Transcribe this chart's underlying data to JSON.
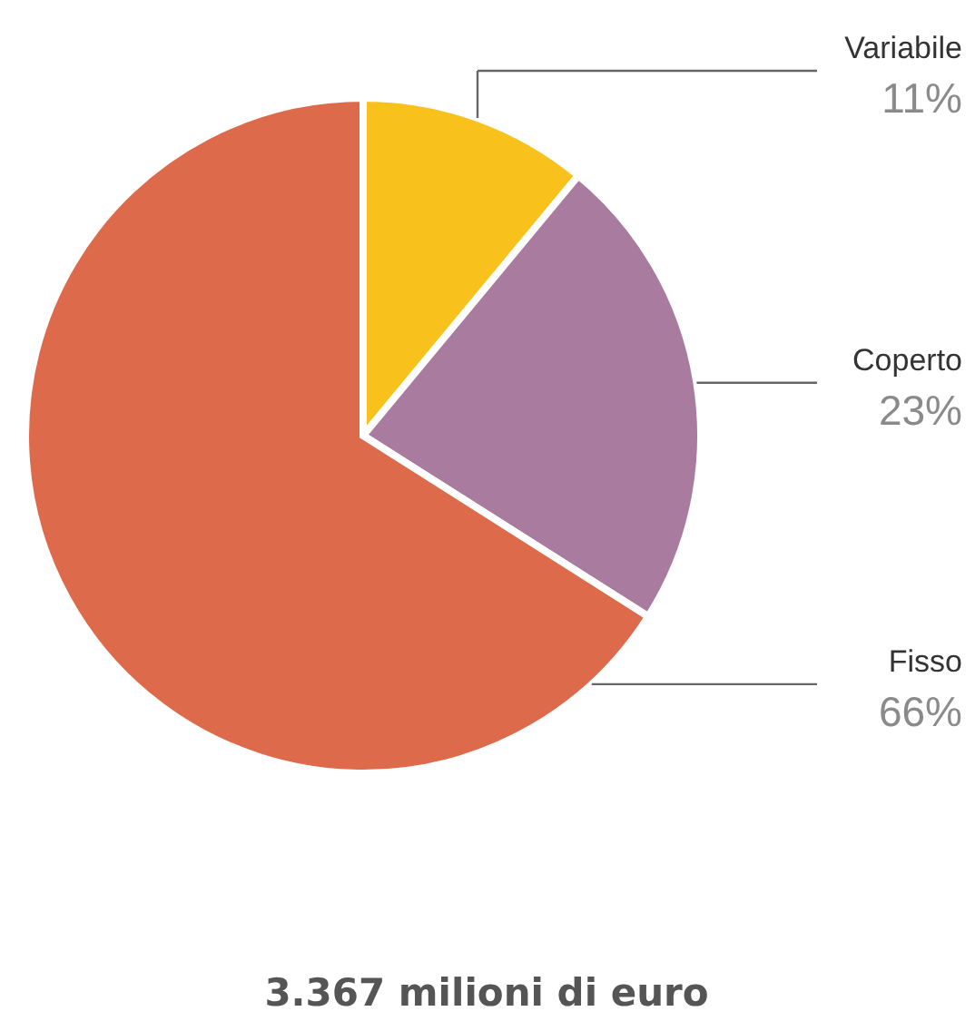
{
  "chart_data": {
    "type": "pie",
    "title": "3.367 milioni di euro",
    "categories": [
      "Variabile",
      "Coperto",
      "Fisso"
    ],
    "values": [
      11,
      23,
      66
    ],
    "value_labels": [
      "11%",
      "23%",
      "66%"
    ],
    "colors": [
      "#f9c11c",
      "#a97b9f",
      "#dd6a4a"
    ]
  }
}
